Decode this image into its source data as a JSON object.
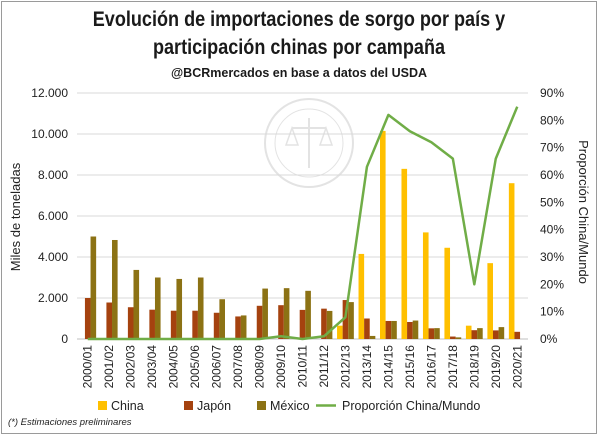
{
  "title_line1": "Evolución de importaciones de sorgo por país y",
  "title_line2": "participación chinas por campaña",
  "subtitle": "@BCRmercados en base a datos del USDA",
  "footnote": "(*) Estimaciones preliminares",
  "colors": {
    "china": "#FFC000",
    "japon": "#A5420F",
    "mexico": "#8C7214",
    "proporcion": "#70AD47",
    "grid": "#d9d9d9"
  },
  "chart_data": {
    "type": "bar",
    "categories": [
      "2000/01",
      "2001/02",
      "2002/03",
      "2003/04",
      "2004/05",
      "2005/06",
      "2006/07",
      "2007/08",
      "2008/09",
      "2009/10",
      "2010/11",
      "2011/12",
      "2012/13",
      "2013/14",
      "2014/15",
      "2015/16",
      "2016/17",
      "2017/18",
      "2018/19",
      "2019/20",
      "2020/21"
    ],
    "series": [
      {
        "name": "China",
        "axis": "left",
        "type": "bar",
        "values": [
          0,
          0,
          0,
          0,
          0,
          0,
          0,
          0,
          0,
          0,
          0,
          0,
          650,
          4150,
          10150,
          8300,
          5200,
          4450,
          650,
          3700,
          7600
        ]
      },
      {
        "name": "Japón",
        "axis": "left",
        "type": "bar",
        "values": [
          2000,
          1780,
          1550,
          1430,
          1380,
          1380,
          1280,
          1100,
          1620,
          1650,
          1420,
          1480,
          1900,
          1000,
          880,
          830,
          520,
          120,
          430,
          420,
          350
        ]
      },
      {
        "name": "México",
        "axis": "left",
        "type": "bar",
        "values": [
          5000,
          4830,
          3370,
          3000,
          2930,
          3000,
          1940,
          1150,
          2460,
          2480,
          2350,
          1370,
          1800,
          150,
          880,
          900,
          530,
          80,
          530,
          580,
          0
        ]
      },
      {
        "name": "Proporción China/Mundo",
        "axis": "right",
        "type": "line",
        "values": [
          0,
          0,
          0,
          0,
          0,
          0,
          0,
          0,
          0,
          1,
          0,
          1,
          8,
          63,
          82,
          76,
          72,
          66,
          20,
          66,
          85
        ]
      }
    ],
    "ylabel": "Miles de toneladas",
    "y2label": "Proporción China/Mundo",
    "ylim": [
      0,
      12000
    ],
    "y2lim": [
      0,
      90
    ],
    "yticks": [
      "0",
      "2.000",
      "4.000",
      "6.000",
      "8.000",
      "10.000",
      "12.000"
    ],
    "y2ticks": [
      "0%",
      "10%",
      "20%",
      "30%",
      "40%",
      "50%",
      "60%",
      "70%",
      "80%",
      "90%"
    ],
    "grid": true,
    "legend_position": "bottom"
  }
}
